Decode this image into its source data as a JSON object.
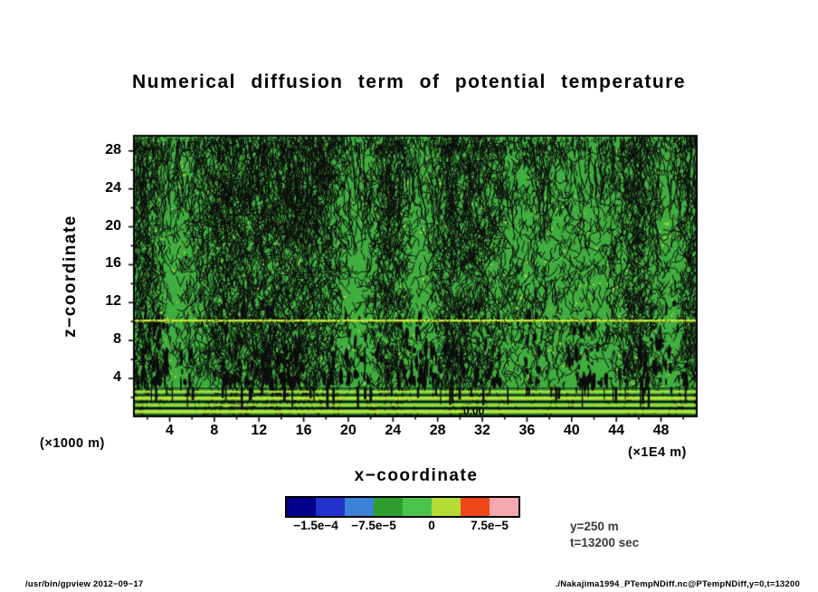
{
  "page": {
    "footer_left": "/usr/bin/gpview  2012−09−17",
    "footer_right": "./Nakajima1994_PTempNDiff.nc@PTempNDiff,y=0,t=13200"
  },
  "chart_data": {
    "type": "heatmap",
    "title": "Numerical diffusion term of potential temperature",
    "xlabel": "x−coordinate",
    "ylabel": "z−coordinate",
    "x_unit_label": "(×1E4 m)",
    "y_unit_label": "(×1000 m)",
    "xlim": [
      0.8,
      51.2
    ],
    "ylim": [
      0,
      29.6
    ],
    "x_ticks": [
      4,
      8,
      12,
      16,
      20,
      24,
      28,
      32,
      36,
      40,
      44,
      48
    ],
    "y_ticks": [
      4,
      8,
      12,
      16,
      20,
      24,
      28
    ],
    "contour_label": "0.00",
    "annotations": {
      "y_slice": "y=250 m",
      "time": "t=13200 sec"
    },
    "colorbar": {
      "colors": [
        "#00008b",
        "#2233cc",
        "#3b82d8",
        "#2f9e2f",
        "#4cc44c",
        "#b4dc32",
        "#ee4719",
        "#f6a8b0"
      ],
      "tick_labels": [
        "−1.5e−4",
        "−7.5e−5",
        "0",
        "7.5e−5"
      ],
      "label_cell_boundaries": [
        1,
        3,
        5,
        7
      ]
    },
    "field": {
      "seed": 1234567,
      "base_color": "#3fae3f",
      "contour_color": "#0c0c0c",
      "highlight_color": "#c3e437",
      "zero_line_z": 10.1,
      "squiggle_count": 16000,
      "blob_count": 460,
      "chevron_count": 420,
      "streak_count": 260,
      "bottom_stripes": [
        {
          "z": 2.95,
          "color": "#0c0c0c",
          "w": 1
        },
        {
          "z": 2.6,
          "color": "#c3e437",
          "w": 2
        },
        {
          "z": 2.25,
          "color": "#0c0c0c",
          "w": 1.5
        },
        {
          "z": 1.9,
          "color": "#c3e437",
          "w": 3
        },
        {
          "z": 1.55,
          "color": "#0c0c0c",
          "w": 2
        },
        {
          "z": 1.2,
          "color": "#c3e437",
          "w": 2
        },
        {
          "z": 0.85,
          "color": "#0c0c0c",
          "w": 2
        },
        {
          "z": 0.5,
          "color": "#c3e437",
          "w": 3
        },
        {
          "z": 0.18,
          "color": "#0c0c0c",
          "w": 1
        }
      ]
    }
  }
}
